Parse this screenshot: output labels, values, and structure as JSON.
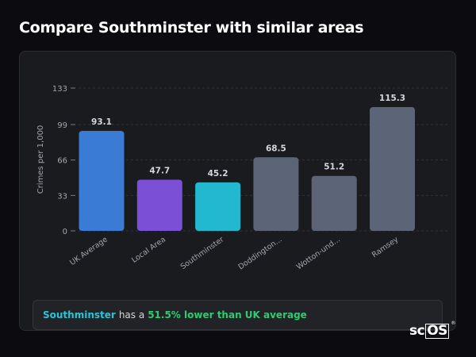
{
  "page": {
    "title": "Compare Southminster with similar areas"
  },
  "chart_data": {
    "type": "bar",
    "ylabel": "Crimes per 1,000",
    "ylim": [
      0,
      133
    ],
    "yticks": [
      0,
      33,
      66,
      99,
      133
    ],
    "grid": true,
    "categories": [
      "UK Average",
      "Local Area",
      "Southminster",
      "Doddington...",
      "Wotton-und...",
      "Ramsey"
    ],
    "values": [
      93.1,
      47.7,
      45.2,
      68.5,
      51.2,
      115.3
    ],
    "value_labels": [
      "93.1",
      "47.7",
      "45.2",
      "68.5",
      "51.2",
      "115.3"
    ],
    "colors": [
      "#3a7bd5",
      "#7b4fd6",
      "#22b9d0",
      "#5b6577",
      "#5b6577",
      "#5b6577"
    ]
  },
  "summary": {
    "area": "Southminster",
    "middle": "has a",
    "difference": "51.5% lower than UK average"
  },
  "logo": {
    "prefix": "sc",
    "boxed": "OS",
    "mark": "®"
  }
}
